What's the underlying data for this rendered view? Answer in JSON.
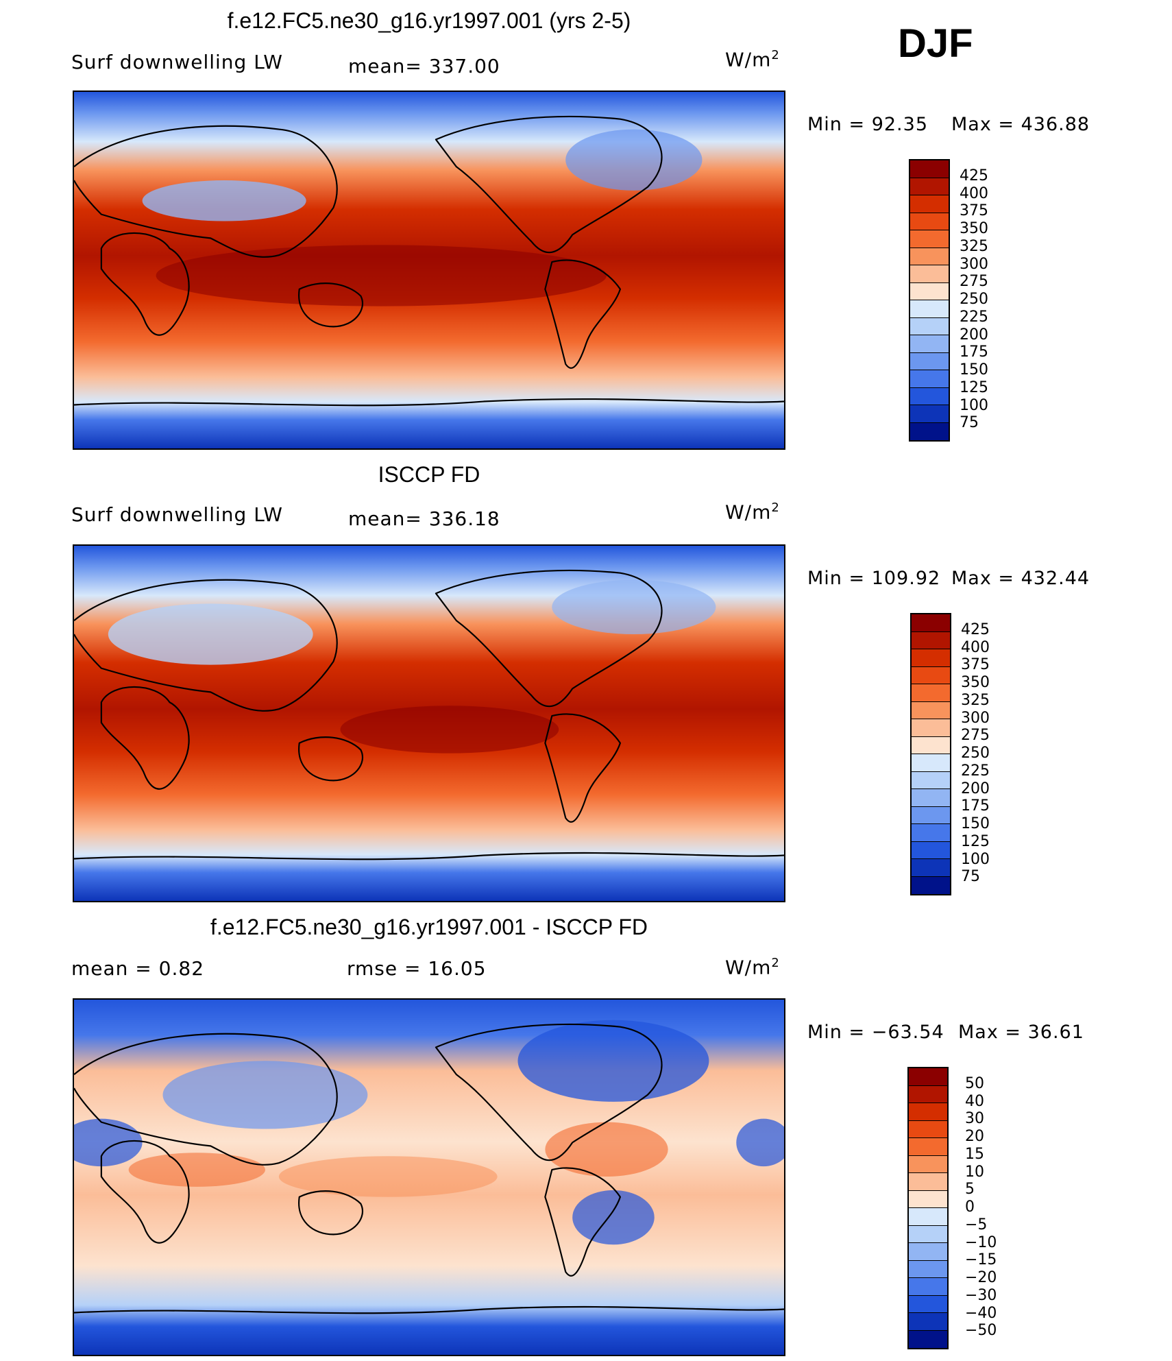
{
  "season": "DJF",
  "units_text": "W/m",
  "units_sup": "2",
  "panels": [
    {
      "id": "model",
      "title": "f.e12.FC5.ne30_g16.yr1997.001 (yrs 2-5)",
      "left_label": "Surf downwelling LW",
      "center_label": "mean= 337.00",
      "min_text": "Min =   92.35",
      "max_text": "Max = 436.88",
      "scale": "abs"
    },
    {
      "id": "obs",
      "title": "ISCCP FD",
      "left_label": "Surf downwelling LW",
      "center_label": "mean= 336.18",
      "min_text": "Min = 109.92",
      "max_text": "Max = 432.44",
      "scale": "abs"
    },
    {
      "id": "diff",
      "title": "f.e12.FC5.ne30_g16.yr1997.001 - ISCCP FD",
      "left_label": "mean =     0.82",
      "center_label": "rmse =    16.05",
      "min_text": "Min = −63.54",
      "max_text": "Max =   36.61",
      "scale": "diff"
    }
  ],
  "colorbars": {
    "abs": {
      "labels": [
        "425",
        "400",
        "375",
        "350",
        "325",
        "300",
        "275",
        "250",
        "225",
        "200",
        "175",
        "150",
        "125",
        "100",
        "75"
      ],
      "colors": [
        "#8b0000",
        "#b11500",
        "#d42e00",
        "#e84a12",
        "#f36a2e",
        "#f8935c",
        "#fbbd98",
        "#fde3cf",
        "#d7e8fb",
        "#b5d1f8",
        "#92b5f3",
        "#6c97ef",
        "#4677ea",
        "#2356dc",
        "#0d34b8",
        "#00128a"
      ]
    },
    "diff": {
      "labels": [
        "50",
        "40",
        "30",
        "20",
        "15",
        "10",
        "5",
        "0",
        "−5",
        "−10",
        "−15",
        "−20",
        "−30",
        "−40",
        "−50"
      ],
      "colors": [
        "#8b0000",
        "#b11500",
        "#d42e00",
        "#e84a12",
        "#f36a2e",
        "#f8935c",
        "#fbbd98",
        "#fde3cf",
        "#d7e8fb",
        "#b5d1f8",
        "#92b5f3",
        "#6c97ef",
        "#4677ea",
        "#2356dc",
        "#0d34b8",
        "#00128a"
      ]
    }
  }
}
